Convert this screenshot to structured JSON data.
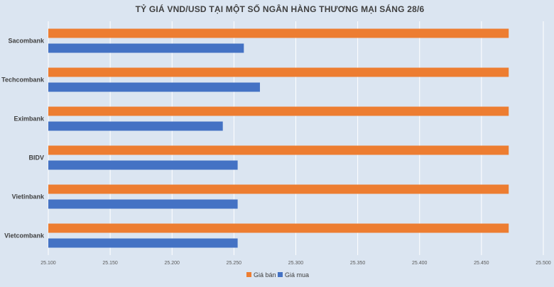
{
  "chart_data": {
    "type": "bar",
    "orientation": "horizontal",
    "title": "TỶ GIÁ VND/USD TẠI MỘT SỐ NGÂN HÀNG THƯƠNG MẠI SÁNG 28/6",
    "categories": [
      "Sacombank",
      "Techcombank",
      "Eximbank",
      "BIDV",
      "Vietinbank",
      "Vietcombank"
    ],
    "series": [
      {
        "name": "Giá bán",
        "color": "#ed7d31",
        "values": [
          25.472,
          25.472,
          25.472,
          25.472,
          25.472,
          25.472
        ]
      },
      {
        "name": "Giá mua",
        "color": "#4472c4",
        "values": [
          25.258,
          25.271,
          25.241,
          25.253,
          25.253,
          25.253
        ]
      }
    ],
    "x_ticks": [
      "25.100",
      "25.150",
      "25.200",
      "25.250",
      "25.300",
      "25.350",
      "25.400",
      "25.450",
      "25.500"
    ],
    "xlim": [
      25.1,
      25.5
    ],
    "grid": true,
    "legend_position": "bottom"
  },
  "colors": {
    "background": "#dbe5f1",
    "gridline": "#ffffff"
  }
}
